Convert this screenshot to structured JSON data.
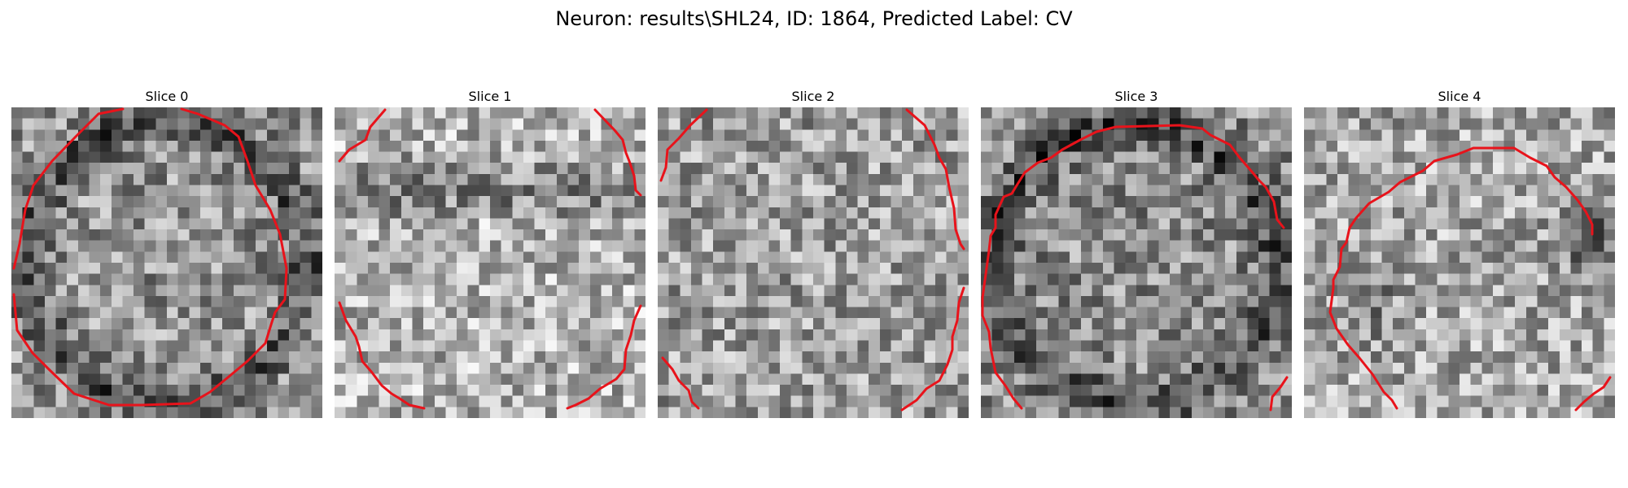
{
  "figure": {
    "title": "Neuron: results\\SHL24, ID: 1864, Predicted Label: CV"
  },
  "panels": [
    {
      "title": "Slice 0",
      "seed": 11,
      "dark_ring": true,
      "center_bright": 0.58
    },
    {
      "title": "Slice 1",
      "seed": 23,
      "dark_band_top": true,
      "center_bright": 0.7
    },
    {
      "title": "Slice 2",
      "seed": 37,
      "center_bright": 0.62
    },
    {
      "title": "Slice 3",
      "seed": 51,
      "dark_ring": true,
      "center_bright": 0.55
    },
    {
      "title": "Slice 4",
      "seed": 67,
      "dark_patch_right": true,
      "center_bright": 0.66
    }
  ],
  "contour_color": "#e8131b",
  "colormap": "gray"
}
